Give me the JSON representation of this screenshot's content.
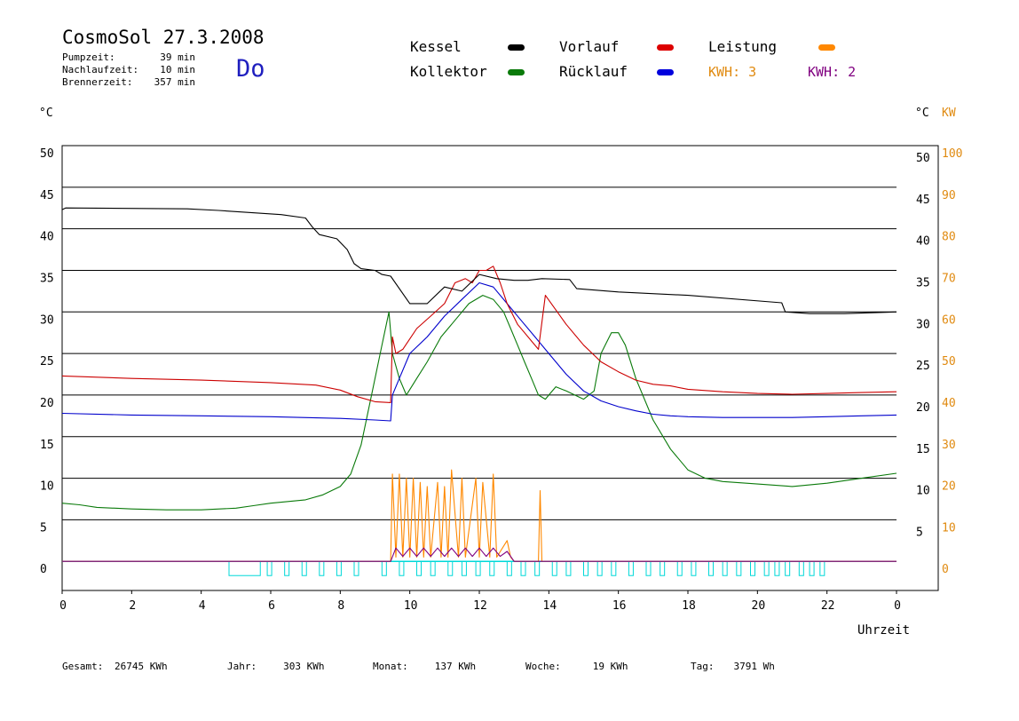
{
  "header": {
    "title": "CosmoSol 27.3.2008",
    "day": "Do",
    "info": [
      {
        "label": "Pumpzeit:",
        "value": "39 min"
      },
      {
        "label": "Nachlaufzeit:",
        "value": "10 min"
      },
      {
        "label": "Brennerzeit:",
        "value": "357 min"
      }
    ]
  },
  "legend": {
    "kessel": "Kessel",
    "kollektor": "Kollektor",
    "vorlauf": "Vorlauf",
    "ruecklauf": "Rücklauf",
    "leistung": "Leistung",
    "kwh_orange": "KWH: 3",
    "kwh_purple": "KWH: 2"
  },
  "colors": {
    "kessel": "#000000",
    "kollektor": "#0a7a0a",
    "vorlauf": "#cc0000",
    "ruecklauf": "#0000cc",
    "leistung": "#ff8800",
    "kwh_purple": "#800080",
    "pump": "#00d8d8"
  },
  "footer": [
    {
      "label": "Gesamt:",
      "value": "26745 KWh"
    },
    {
      "label": "Jahr:",
      "value": "303 KWh"
    },
    {
      "label": "Monat:",
      "value": "137 KWh"
    },
    {
      "label": "Woche:",
      "value": "19 KWh"
    },
    {
      "label": "Tag:",
      "value": "3791 Wh"
    }
  ],
  "chart_data": {
    "type": "line",
    "title": "CosmoSol 27.3.2008",
    "xlabel": "Uhrzeit",
    "ylabel_left": "°C",
    "ylabel_right_temp": "°C",
    "ylabel_right_power": "KW",
    "xlim": [
      0,
      24
    ],
    "ylim": [
      -3.5,
      50
    ],
    "y2lim": [
      -7,
      100
    ],
    "x_ticks": [
      "0",
      "2",
      "4",
      "6",
      "8",
      "10",
      "12",
      "14",
      "16",
      "18",
      "20",
      "22",
      "0"
    ],
    "y_ticks_left": [
      "50",
      "45",
      "40",
      "35",
      "30",
      "25",
      "20",
      "15",
      "10",
      "5",
      "0"
    ],
    "y_ticks_right": [
      "50",
      "45",
      "40",
      "35",
      "30",
      "25",
      "20",
      "15",
      "10",
      "5"
    ],
    "y_ticks_kw": [
      "100",
      "90",
      "80",
      "70",
      "60",
      "50",
      "40",
      "30",
      "20",
      "10",
      "0"
    ],
    "grid": true,
    "series": [
      {
        "name": "Kessel",
        "color": "#000000",
        "x": [
          0,
          0.1,
          3.6,
          4.5,
          6.3,
          7.0,
          7.2,
          7.4,
          7.9,
          8.2,
          8.4,
          8.6,
          9.0,
          9.2,
          9.45,
          10.0,
          10.5,
          11.0,
          11.5,
          12.0,
          12.5,
          13.0,
          13.4,
          13.8,
          14.6,
          14.8,
          16,
          18,
          20.7,
          20.8,
          21.5,
          22.5,
          24
        ],
        "y": [
          42.3,
          42.5,
          42.4,
          42.2,
          41.7,
          41.3,
          40.2,
          39.3,
          38.8,
          37.5,
          35.8,
          35.2,
          35.0,
          34.5,
          34.3,
          31.0,
          31.0,
          33.0,
          32.5,
          34.5,
          34.0,
          33.8,
          33.8,
          34.0,
          33.9,
          32.8,
          32.4,
          32.0,
          31.1,
          30.0,
          29.8,
          29.8,
          30.0
        ]
      },
      {
        "name": "Vorlauf",
        "color": "#cc0000",
        "x": [
          0,
          2,
          4,
          6,
          7.3,
          8,
          8.5,
          9.0,
          9.45,
          9.5,
          9.6,
          9.8,
          10.2,
          10.6,
          11.0,
          11.3,
          11.6,
          11.8,
          12.0,
          12.2,
          12.4,
          12.6,
          12.8,
          13.1,
          13.5,
          13.7,
          13.9,
          14.5,
          15,
          15.5,
          16,
          16.5,
          17,
          17.5,
          18,
          19,
          20,
          21,
          22,
          23,
          24
        ],
        "y": [
          22.3,
          22.0,
          21.8,
          21.5,
          21.2,
          20.6,
          19.8,
          19.2,
          19.1,
          27.0,
          25.0,
          25.5,
          28.0,
          29.5,
          31.0,
          33.5,
          34.0,
          33.5,
          35.0,
          35.0,
          35.5,
          33.5,
          31.0,
          28.5,
          26.5,
          25.5,
          32.0,
          28.5,
          26.0,
          24.0,
          22.8,
          21.8,
          21.3,
          21.1,
          20.7,
          20.4,
          20.2,
          20.1,
          20.2,
          20.3,
          20.4
        ]
      },
      {
        "name": "Rücklauf",
        "color": "#0000cc",
        "x": [
          0,
          2,
          4,
          6,
          8,
          9.0,
          9.45,
          9.5,
          9.7,
          10.0,
          10.5,
          11.0,
          11.5,
          12.0,
          12.4,
          12.8,
          13.2,
          13.6,
          14.0,
          14.5,
          15.0,
          15.5,
          16.0,
          16.5,
          17.0,
          17.5,
          18,
          19,
          20,
          21,
          22,
          23,
          24
        ],
        "y": [
          17.8,
          17.6,
          17.5,
          17.4,
          17.2,
          17.0,
          16.9,
          20.0,
          22.0,
          25.0,
          27.0,
          29.5,
          31.5,
          33.5,
          33.0,
          31.0,
          29.0,
          27.0,
          25.0,
          22.5,
          20.5,
          19.3,
          18.6,
          18.1,
          17.7,
          17.5,
          17.4,
          17.3,
          17.3,
          17.3,
          17.4,
          17.5,
          17.6
        ]
      },
      {
        "name": "Kollektor",
        "color": "#0a7a0a",
        "x": [
          0,
          0.5,
          1,
          2,
          3,
          4,
          5,
          5.5,
          6,
          7,
          7.5,
          8,
          8.3,
          8.6,
          8.9,
          9.2,
          9.4,
          9.5,
          9.7,
          9.9,
          10.2,
          10.5,
          10.9,
          11.3,
          11.7,
          12.1,
          12.4,
          12.7,
          12.9,
          13.1,
          13.3,
          13.5,
          13.7,
          13.9,
          14.0,
          14.2,
          14.5,
          15.0,
          15.3,
          15.5,
          15.8,
          16.0,
          16.2,
          16.5,
          17.0,
          17.5,
          18.0,
          18.5,
          19,
          20,
          21,
          22,
          23,
          24
        ],
        "y": [
          7.0,
          6.8,
          6.5,
          6.3,
          6.2,
          6.2,
          6.4,
          6.7,
          7.0,
          7.4,
          8.0,
          9.0,
          10.5,
          14.0,
          20.0,
          26.0,
          30.0,
          25.0,
          22.0,
          20.0,
          22.0,
          24.0,
          27.0,
          29.0,
          31.0,
          32.0,
          31.5,
          30.0,
          28.0,
          26.0,
          24.0,
          22.0,
          20.0,
          19.5,
          20.0,
          21.0,
          20.5,
          19.5,
          20.5,
          25.0,
          27.5,
          27.5,
          26.0,
          22.0,
          17.0,
          13.5,
          11.0,
          10.0,
          9.6,
          9.3,
          9.0,
          9.4,
          10.0,
          10.6
        ]
      },
      {
        "name": "Leistung",
        "color": "#ff8800",
        "x": [
          0,
          9.45,
          9.5,
          9.6,
          9.7,
          9.8,
          9.9,
          10.0,
          10.1,
          10.2,
          10.3,
          10.4,
          10.5,
          10.6,
          10.8,
          10.9,
          11.0,
          11.1,
          11.2,
          11.4,
          11.5,
          11.6,
          11.9,
          12.0,
          12.1,
          12.3,
          12.4,
          12.5,
          12.8,
          12.9,
          13.0,
          13.7,
          13.75,
          13.8,
          24
        ],
        "y": [
          0,
          0,
          10.5,
          0.5,
          10.5,
          0.5,
          10.0,
          0.5,
          10.0,
          0.5,
          9.5,
          0.5,
          9.0,
          0.5,
          9.5,
          0.5,
          9.0,
          0.5,
          11.0,
          0.5,
          10.0,
          0.5,
          10.0,
          0.5,
          9.5,
          0.5,
          10.5,
          0.5,
          2.5,
          0.5,
          0,
          0,
          8.5,
          0,
          0
        ]
      },
      {
        "name": "KWH: 2",
        "color": "#800080",
        "x": [
          0,
          9.45,
          9.6,
          9.8,
          10.0,
          10.2,
          10.4,
          10.6,
          10.8,
          11.0,
          11.2,
          11.4,
          11.6,
          11.8,
          12.0,
          12.2,
          12.4,
          12.6,
          12.8,
          13.0,
          24
        ],
        "y": [
          0,
          0,
          1.6,
          0.6,
          1.6,
          0.6,
          1.6,
          0.6,
          1.6,
          0.6,
          1.6,
          0.6,
          1.6,
          0.6,
          1.6,
          0.6,
          1.6,
          0.6,
          1.2,
          0,
          0
        ]
      }
    ],
    "pump_cycles": [
      4.8,
      5.9,
      6.4,
      6.9,
      7.4,
      7.9,
      8.4,
      9.2,
      9.7,
      10.2,
      10.6,
      11.1,
      11.5,
      11.9,
      12.3,
      12.8,
      13.2,
      13.6,
      14.1,
      14.5,
      15.0,
      15.4,
      15.8,
      16.3,
      16.8,
      17.2,
      17.7,
      18.1,
      18.6,
      19.0,
      19.4,
      19.8,
      20.2,
      20.5,
      20.8,
      21.2,
      21.5,
      21.8
    ]
  }
}
